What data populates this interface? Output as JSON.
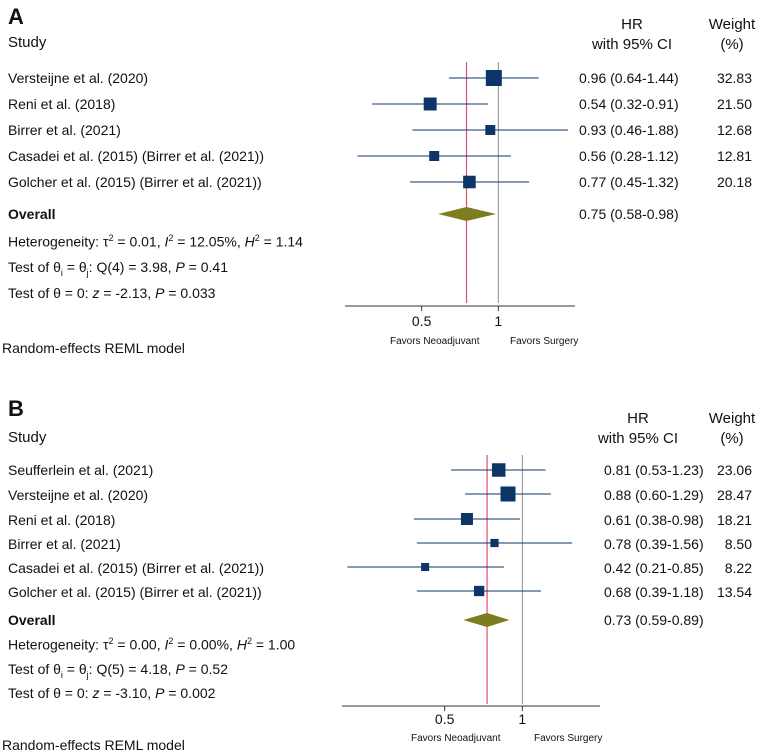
{
  "chart_data": [
    {
      "type": "forest",
      "panel": "A",
      "headers": {
        "study": "Study",
        "hr": "HR",
        "ci": "with 95% CI",
        "weight": "Weight",
        "weight_unit": "(%)"
      },
      "studies": [
        {
          "name": "Versteijne et al. (2020)",
          "hr": 0.96,
          "lo": 0.64,
          "hi": 1.44,
          "hr_text": "0.96 (0.64-1.44)",
          "weight": 32.83,
          "weight_text": "32.83"
        },
        {
          "name": "Reni et al. (2018)",
          "hr": 0.54,
          "lo": 0.32,
          "hi": 0.91,
          "hr_text": "0.54 (0.32-0.91)",
          "weight": 21.5,
          "weight_text": "21.50"
        },
        {
          "name": "Birrer et al. (2021)",
          "hr": 0.93,
          "lo": 0.46,
          "hi": 1.88,
          "hr_text": "0.93 (0.46-1.88)",
          "weight": 12.68,
          "weight_text": "12.68"
        },
        {
          "name": "Casadei et al. (2015) (Birrer et al. (2021))",
          "hr": 0.56,
          "lo": 0.28,
          "hi": 1.12,
          "hr_text": "0.56 (0.28-1.12)",
          "weight": 12.81,
          "weight_text": "12.81"
        },
        {
          "name": "Golcher et al. (2015) (Birrer et al. (2021))",
          "hr": 0.77,
          "lo": 0.45,
          "hi": 1.32,
          "hr_text": "0.77 (0.45-1.32)",
          "weight": 20.18,
          "weight_text": "20.18"
        }
      ],
      "overall": {
        "label": "Overall",
        "hr": 0.75,
        "lo": 0.58,
        "hi": 0.98,
        "hr_text": "0.75 (0.58-0.98)"
      },
      "stats": {
        "heterogeneity": "Heterogeneity: τ² = 0.01, I² = 12.05%, H² = 1.14",
        "het_prefix": "Heterogeneity: ",
        "tau": "τ",
        "tau_val": " = 0.01, ",
        "i2": "I",
        "i2_val": " = 12.05%, ",
        "h2": "H",
        "h2_val": " = 1.14",
        "sup": "2",
        "q_prefix": "Test of θ",
        "q_sub": "i",
        "q_mid": " = θ",
        "q_sub2": "j",
        "q_rest": ": Q(4) = 3.98, ",
        "q_p": "P",
        "q_pval": " = 0.41",
        "z_prefix": "Test of θ = 0: ",
        "z_z": "z",
        "z_rest": " = -2.13, ",
        "z_p": "P",
        "z_pval": " = 0.033"
      },
      "axis": {
        "xscale": "log",
        "xlim": [
          0.25,
          2.0
        ],
        "ticks": [
          0.5,
          1
        ],
        "tick_labels": [
          "0.5",
          "1"
        ],
        "null_line": 1
      },
      "favors_left": "Favors Neoadjuvant",
      "favors_right": "Favors Surgery",
      "model": "Random-effects REML model",
      "colors": {
        "marker": "#0d3567",
        "diamond": "#7b7d1e",
        "overall_line": "#e0516a",
        "null_line": "#8a8a8a"
      }
    },
    {
      "type": "forest",
      "panel": "B",
      "headers": {
        "study": "Study",
        "hr": "HR",
        "ci": "with 95% CI",
        "weight": "Weight",
        "weight_unit": "(%)"
      },
      "studies": [
        {
          "name": "Seufferlein et al. (2021)",
          "hr": 0.81,
          "lo": 0.53,
          "hi": 1.23,
          "hr_text": "0.81 (0.53-1.23)",
          "weight": 23.06,
          "weight_text": "23.06"
        },
        {
          "name": "Versteijne et al. (2020)",
          "hr": 0.88,
          "lo": 0.6,
          "hi": 1.29,
          "hr_text": "0.88 (0.60-1.29)",
          "weight": 28.47,
          "weight_text": "28.47"
        },
        {
          "name": "Reni et al. (2018)",
          "hr": 0.61,
          "lo": 0.38,
          "hi": 0.98,
          "hr_text": "0.61 (0.38-0.98)",
          "weight": 18.21,
          "weight_text": "18.21"
        },
        {
          "name": "Birrer et al. (2021)",
          "hr": 0.78,
          "lo": 0.39,
          "hi": 1.56,
          "hr_text": "0.78 (0.39-1.56)",
          "weight": 8.5,
          "weight_text": "8.50"
        },
        {
          "name": "Casadei et al. (2015) (Birrer et al. (2021))",
          "hr": 0.42,
          "lo": 0.21,
          "hi": 0.85,
          "hr_text": "0.42 (0.21-0.85)",
          "weight": 8.22,
          "weight_text": "8.22"
        },
        {
          "name": "Golcher et al. (2015) (Birrer et al. (2021))",
          "hr": 0.68,
          "lo": 0.39,
          "hi": 1.18,
          "hr_text": "0.68 (0.39-1.18)",
          "weight": 13.54,
          "weight_text": "13.54"
        }
      ],
      "overall": {
        "label": "Overall",
        "hr": 0.73,
        "lo": 0.59,
        "hi": 0.89,
        "hr_text": "0.73 (0.59-0.89)"
      },
      "stats": {
        "heterogeneity": "Heterogeneity: τ² = 0.00, I² = 0.00%, H² = 1.00",
        "het_prefix": "Heterogeneity: ",
        "tau": "τ",
        "tau_val": " = 0.00, ",
        "i2": "I",
        "i2_val": " = 0.00%, ",
        "h2": "H",
        "h2_val": " = 1.00",
        "sup": "2",
        "q_prefix": "Test of θ",
        "q_sub": "i",
        "q_mid": " = θ",
        "q_sub2": "j",
        "q_rest": ": Q(5) = 4.18, ",
        "q_p": "P",
        "q_pval": " = 0.52",
        "z_prefix": "Test of θ = 0: ",
        "z_z": "z",
        "z_rest": " = -3.10, ",
        "z_p": "P",
        "z_pval": " = 0.002"
      },
      "axis": {
        "xscale": "log",
        "xlim": [
          0.2,
          2.0
        ],
        "ticks": [
          0.5,
          1
        ],
        "tick_labels": [
          "0.5",
          "1"
        ],
        "null_line": 1
      },
      "favors_left": "Favors Neoadjuvant",
      "favors_right": "Favors Surgery",
      "model": "Random-effects REML model",
      "colors": {
        "marker": "#0d3567",
        "diamond": "#7b7d1e",
        "overall_line": "#e0516a",
        "null_line": "#8a8a8a"
      }
    }
  ]
}
